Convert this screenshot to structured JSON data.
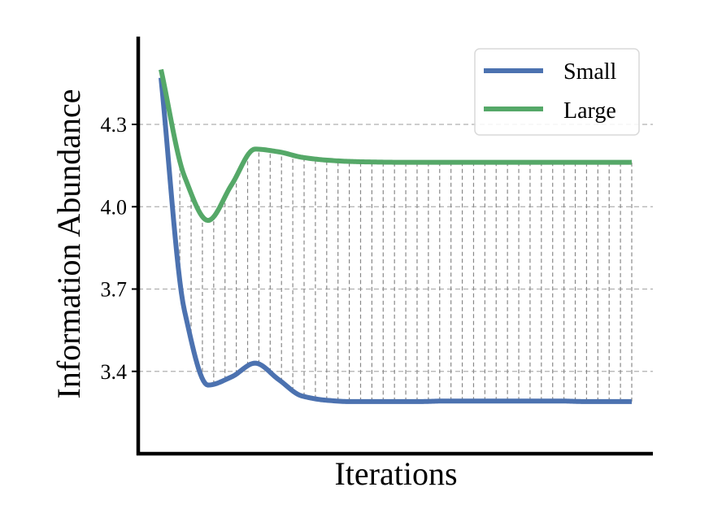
{
  "chart_data": {
    "type": "line",
    "title": "",
    "xlabel": "Iterations",
    "ylabel": "Information Abundance",
    "ylim": [
      3.1,
      4.62
    ],
    "yticks": [
      3.4,
      3.7,
      4.0,
      4.3
    ],
    "ytick_labels": [
      "3.4",
      "3.7",
      "4.0",
      "4.3"
    ],
    "x_tick_labels_shown": false,
    "grid": "horizontal dashed at y ticks",
    "legend": {
      "position": "top-right"
    },
    "x": [
      0,
      1,
      2,
      3,
      4,
      5,
      6,
      7,
      8,
      9,
      10,
      11,
      12,
      13,
      14,
      15,
      16,
      17,
      18,
      19,
      20
    ],
    "series": [
      {
        "name": "Small",
        "color": "#4c72b0",
        "values": [
          4.47,
          3.62,
          3.35,
          3.38,
          3.43,
          3.37,
          3.31,
          3.295,
          3.29,
          3.29,
          3.29,
          3.29,
          3.292,
          3.292,
          3.292,
          3.292,
          3.292,
          3.292,
          3.29,
          3.29,
          3.29
        ]
      },
      {
        "name": "Large",
        "color": "#55a868",
        "values": [
          4.5,
          4.11,
          3.95,
          4.08,
          4.21,
          4.2,
          4.18,
          4.17,
          4.165,
          4.163,
          4.162,
          4.162,
          4.162,
          4.162,
          4.162,
          4.162,
          4.162,
          4.162,
          4.162,
          4.162,
          4.162
        ]
      }
    ],
    "gap_lines": {
      "style": "vertical dashed",
      "color": "#888888",
      "count": 40
    }
  }
}
